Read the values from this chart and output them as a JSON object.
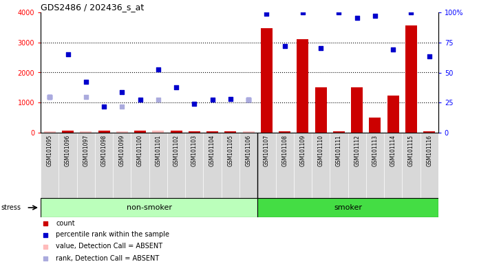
{
  "title": "GDS2486 / 202436_s_at",
  "samples": [
    "GSM101095",
    "GSM101096",
    "GSM101097",
    "GSM101098",
    "GSM101099",
    "GSM101100",
    "GSM101101",
    "GSM101102",
    "GSM101103",
    "GSM101104",
    "GSM101105",
    "GSM101106",
    "GSM101107",
    "GSM101108",
    "GSM101109",
    "GSM101110",
    "GSM101111",
    "GSM101112",
    "GSM101113",
    "GSM101114",
    "GSM101115",
    "GSM101116"
  ],
  "n_nonsmoker": 12,
  "n_smoker": 10,
  "bar_values": [
    50,
    60,
    55,
    70,
    55,
    60,
    65,
    60,
    55,
    50,
    50,
    55,
    3480,
    50,
    3100,
    1500,
    50,
    1500,
    500,
    1230,
    3560,
    50
  ],
  "blue_values": [
    1200,
    2600,
    1700,
    880,
    1350,
    1100,
    2100,
    1510,
    970,
    1100,
    1130,
    1100,
    3950,
    2880,
    4000,
    2820,
    4000,
    3810,
    3890,
    2760,
    4000,
    2530
  ],
  "light_blue_values": [
    1200,
    null,
    1200,
    null,
    880,
    null,
    1100,
    null,
    null,
    null,
    null,
    1100,
    null,
    null,
    null,
    null,
    null,
    null,
    null,
    null,
    null,
    null
  ],
  "absent_bar": [
    true,
    false,
    true,
    false,
    true,
    false,
    true,
    false,
    false,
    false,
    false,
    true,
    false,
    false,
    false,
    false,
    false,
    false,
    false,
    false,
    false,
    false
  ],
  "bar_color_present": "#cc0000",
  "bar_color_absent": "#ffbbbb",
  "blue_color": "#0000cc",
  "light_blue_color": "#aaaadd",
  "nonsmoker_color": "#bbffbb",
  "smoker_color": "#44dd44",
  "label_count": "count",
  "label_percentile": "percentile rank within the sample",
  "label_value_absent": "value, Detection Call = ABSENT",
  "label_rank_absent": "rank, Detection Call = ABSENT",
  "stress_label": "stress",
  "nonsmoker_label": "non-smoker",
  "smoker_label": "smoker"
}
